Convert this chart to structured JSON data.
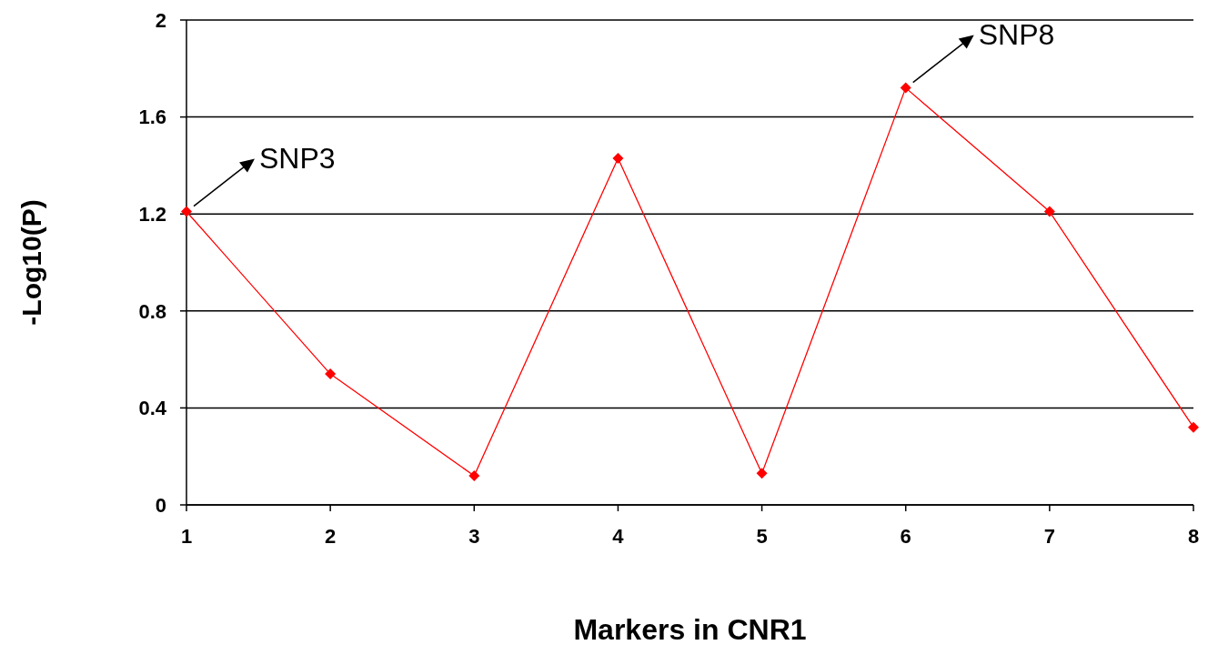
{
  "chart_data": {
    "type": "line",
    "xlabel": "Markers in CNR1",
    "ylabel": "-Log10(P)",
    "x": [
      1,
      2,
      3,
      4,
      5,
      6,
      7,
      8
    ],
    "series": [
      {
        "color": "#ff0000",
        "values": [
          1.21,
          0.54,
          0.12,
          1.43,
          0.13,
          1.72,
          1.21,
          0.32
        ]
      }
    ],
    "xlim": [
      1,
      8
    ],
    "xticks": [
      1,
      2,
      3,
      4,
      5,
      6,
      7,
      8
    ],
    "ylim": [
      0,
      2
    ],
    "yticks": [
      0,
      0.4,
      0.8,
      1.2,
      1.6,
      2
    ],
    "grid": "y",
    "marker": "diamond",
    "line_style": "solid",
    "annotations": [
      {
        "text": "SNP3",
        "x": 1,
        "y": 1.21
      },
      {
        "text": "SNP8",
        "x": 6,
        "y": 1.72
      }
    ]
  }
}
